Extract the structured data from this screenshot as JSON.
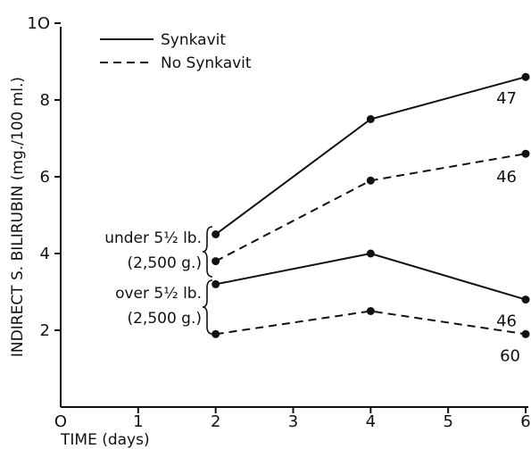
{
  "chart_data": {
    "type": "line",
    "title": "",
    "xlabel": "TIME (days)",
    "ylabel": "INDIRECT S. BILIRUBIN (mg./100 ml.)",
    "xlim": [
      0,
      6
    ],
    "ylim": [
      0,
      10
    ],
    "x_ticks": [
      "O",
      "1",
      "2",
      "3",
      "4",
      "5",
      "6"
    ],
    "y_ticks": [
      "O",
      "2",
      "4",
      "6",
      "8",
      "1O"
    ],
    "legend": [
      {
        "label": "Synkavit",
        "style": "solid"
      },
      {
        "label": "No Synkavit",
        "style": "dashed"
      }
    ],
    "group_labels": [
      {
        "line1": "under 5½ lb.",
        "line2": "(2,500 g.)"
      },
      {
        "line1": "over 5½ lb.",
        "line2": "(2,500 g.)"
      }
    ],
    "series": [
      {
        "group": "under 5½ lb.",
        "treatment": "Synkavit",
        "style": "solid",
        "x": [
          2,
          4,
          6
        ],
        "values": [
          4.5,
          7.5,
          8.6
        ],
        "n_label": "47"
      },
      {
        "group": "under 5½ lb.",
        "treatment": "No Synkavit",
        "style": "dashed",
        "x": [
          2,
          4,
          6
        ],
        "values": [
          3.8,
          5.9,
          6.6
        ],
        "n_label": "46"
      },
      {
        "group": "over 5½ lb.",
        "treatment": "Synkavit",
        "style": "solid",
        "x": [
          2,
          4,
          6
        ],
        "values": [
          3.2,
          4.0,
          2.8
        ],
        "n_label": "46"
      },
      {
        "group": "over 5½ lb.",
        "treatment": "No Synkavit",
        "style": "dashed",
        "x": [
          2,
          4,
          6
        ],
        "values": [
          1.9,
          2.5,
          1.9
        ],
        "n_label": "60"
      }
    ]
  }
}
